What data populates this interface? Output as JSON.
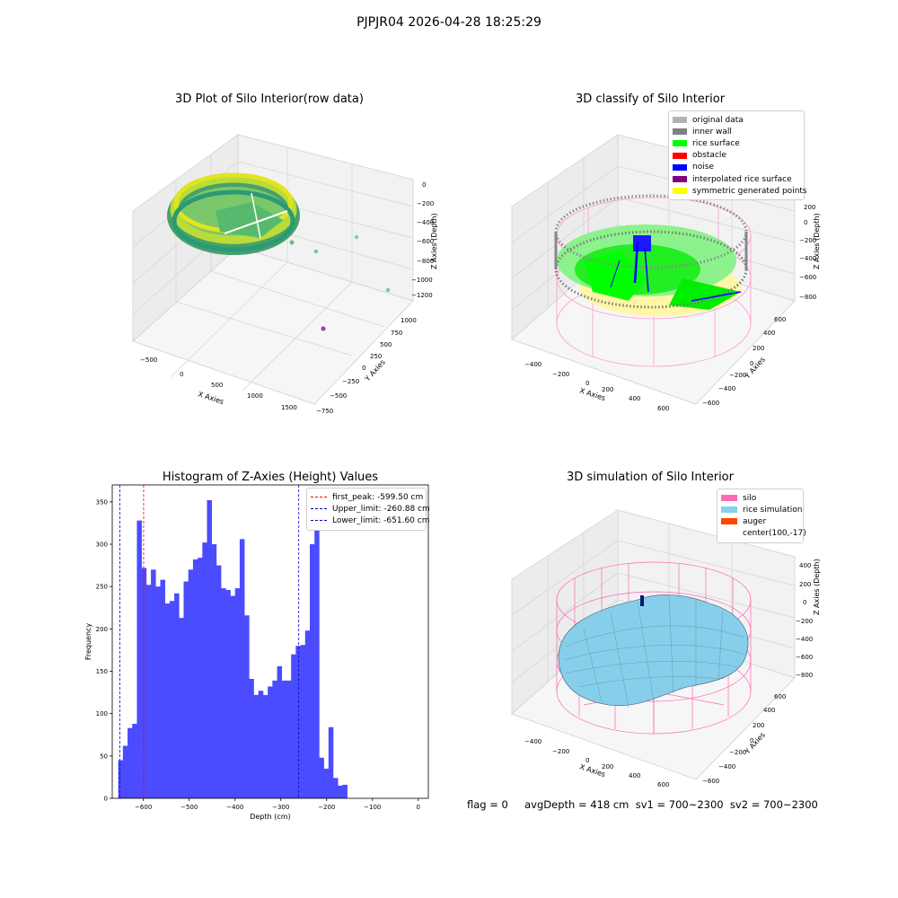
{
  "suptitle": "PJPJR04 2026-04-28 18:25:29",
  "panels": {
    "raw": {
      "title": "3D Plot of Silo Interior(row data)",
      "xlabel": "X Axies",
      "ylabel": "Y Axies",
      "zlabel": "Z Axies (Depth)",
      "xticks": [
        "−500",
        "0",
        "500",
        "1000",
        "1500"
      ],
      "yticks": [
        "−750",
        "−500",
        "−250",
        "0",
        "250",
        "500",
        "750",
        "1000"
      ],
      "zticks": [
        "0",
        "−200",
        "−400",
        "−600",
        "−800",
        "−1000",
        "−1200"
      ]
    },
    "classify": {
      "title": "3D classify of Silo Interior",
      "xlabel": "X Axies",
      "ylabel": "Y Axies",
      "zlabel": "Z Axies (Depth)",
      "xticks": [
        "−400",
        "−200",
        "0",
        "200",
        "400",
        "600"
      ],
      "yticks": [
        "−600",
        "−400",
        "−200",
        "0",
        "200",
        "400",
        "600"
      ],
      "zticks": [
        "200",
        "0",
        "−200",
        "−400",
        "−600",
        "−800"
      ],
      "legend": [
        {
          "label": "original data",
          "color": "#b3b3b3"
        },
        {
          "label": "inner wall",
          "color": "#808080"
        },
        {
          "label": "rice surface",
          "color": "#00ff00"
        },
        {
          "label": "obstacle",
          "color": "#ff0000"
        },
        {
          "label": "noise",
          "color": "#0000ff"
        },
        {
          "label": "interpolated rice surface",
          "color": "#800080"
        },
        {
          "label": "symmetric generated points",
          "color": "#ffff00"
        }
      ]
    },
    "simulation": {
      "title": "3D simulation of Silo Interior",
      "xlabel": "X Axies",
      "ylabel": "Y Axies",
      "zlabel": "Z Axies (Depth)",
      "xticks": [
        "−400",
        "−200",
        "0",
        "200",
        "400",
        "600"
      ],
      "yticks": [
        "−600",
        "−400",
        "−200",
        "0",
        "200",
        "400",
        "600"
      ],
      "zticks": [
        "400",
        "200",
        "0",
        "−200",
        "−400",
        "−600",
        "−800"
      ],
      "legend": [
        {
          "label": "silo",
          "color": "#ff69b4"
        },
        {
          "label": "rice simulation",
          "color": "#87ceeb"
        },
        {
          "label": "auger",
          "color": "#ff4500"
        },
        {
          "label": "center(100,-17)",
          "color": ""
        }
      ]
    }
  },
  "chart_data": {
    "type": "bar",
    "title": "Histogram of Z-Axies (Height) Values",
    "xlabel": "Depth (cm)",
    "ylabel": "Frequency",
    "bin_start": -655,
    "bin_width": 10.2,
    "values": [
      45,
      62,
      83,
      88,
      328,
      272,
      252,
      270,
      250,
      258,
      230,
      233,
      242,
      213,
      256,
      270,
      282,
      284,
      302,
      352,
      300,
      275,
      248,
      246,
      239,
      248,
      306,
      216,
      141,
      122,
      127,
      122,
      132,
      139,
      156,
      139,
      139,
      170,
      180,
      181,
      198,
      300,
      331,
      48,
      35,
      84,
      24,
      15,
      16
    ],
    "xlim": [
      -668,
      22
    ],
    "ylim": [
      0,
      370
    ],
    "xticks": [
      -600,
      -500,
      -400,
      -300,
      -200,
      -100,
      0
    ],
    "yticks": [
      0,
      50,
      100,
      150,
      200,
      250,
      300,
      350
    ],
    "bar_color": "#4b4bff",
    "vlines": [
      {
        "label": "first_peak: -599.50 cm",
        "x": -599.5,
        "color": "#ff0000"
      },
      {
        "label": "Upper_limit: -260.88 cm",
        "x": -260.88,
        "color": "#0000cd"
      },
      {
        "label": "Lower_limit: -651.60 cm",
        "x": -651.6,
        "color": "#0000cd"
      }
    ]
  },
  "footer": {
    "text": "flag = 0     avgDepth = 418 cm  sv1 = 700~2300  sv2 = 700~2300"
  }
}
